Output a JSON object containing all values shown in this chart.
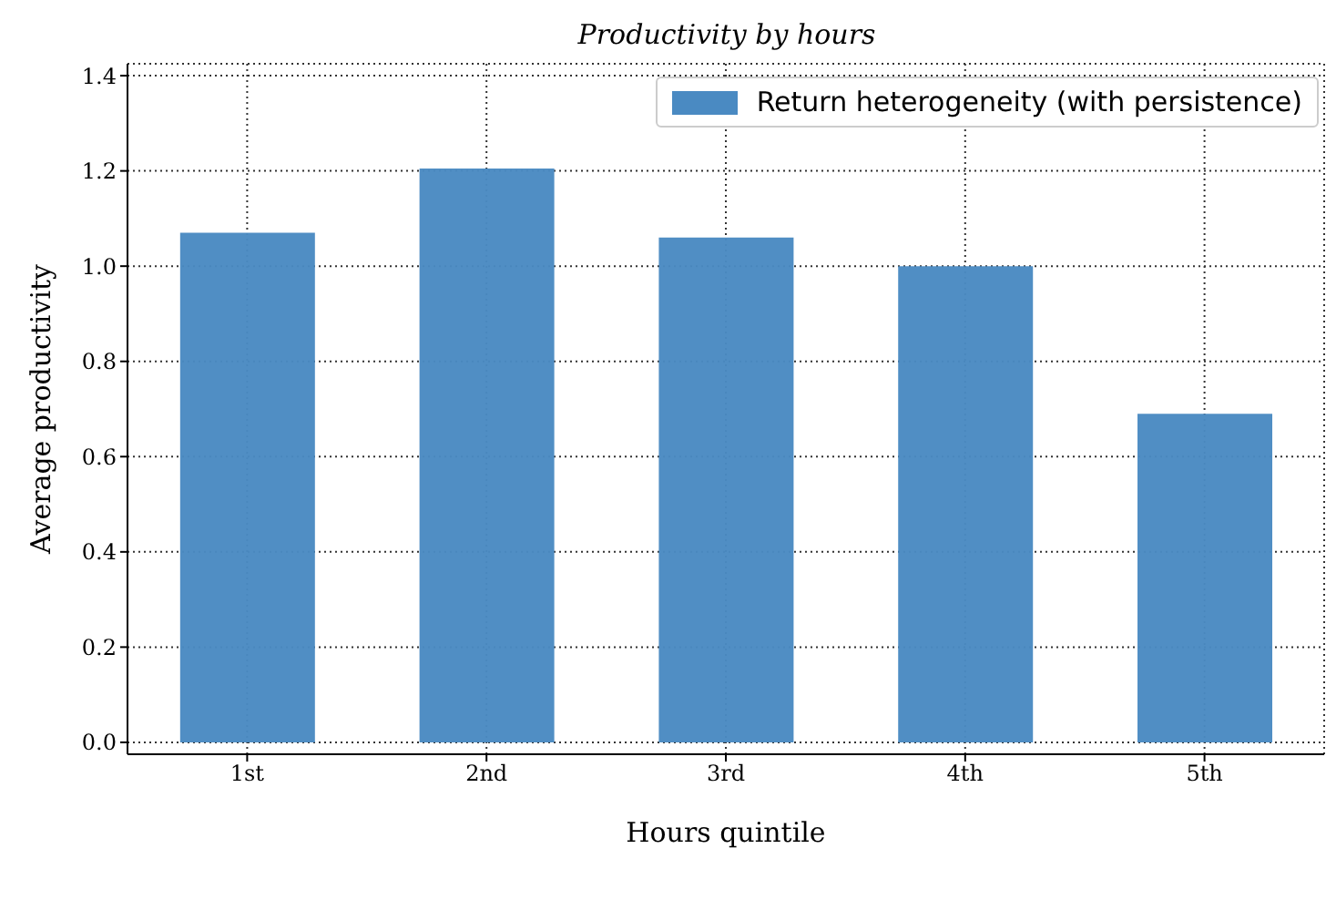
{
  "chart_data": {
    "type": "bar",
    "title": "Productivity by hours",
    "xlabel": "Hours quintile",
    "ylabel": "Average productivity",
    "categories": [
      "1st",
      "2nd",
      "3rd",
      "4th",
      "5th"
    ],
    "series": [
      {
        "name": "Return heterogeneity (with persistence)",
        "color": "#4a8ac2",
        "values": [
          1.07,
          1.205,
          1.06,
          1.0,
          0.69
        ]
      }
    ],
    "ylim": [
      -0.025,
      1.425
    ],
    "yticks": [
      {
        "value": 0,
        "label": "0.0"
      },
      {
        "value": 0.2,
        "label": "0.2"
      },
      {
        "value": 0.4,
        "label": "0.4"
      },
      {
        "value": 0.6,
        "label": "0.6"
      },
      {
        "value": 0.8,
        "label": "0.8"
      },
      {
        "value": 1,
        "label": "1.0"
      },
      {
        "value": 1.2,
        "label": "1.2"
      },
      {
        "value": 1.4,
        "label": "1.4"
      }
    ],
    "grid": true,
    "legend": "top right"
  }
}
